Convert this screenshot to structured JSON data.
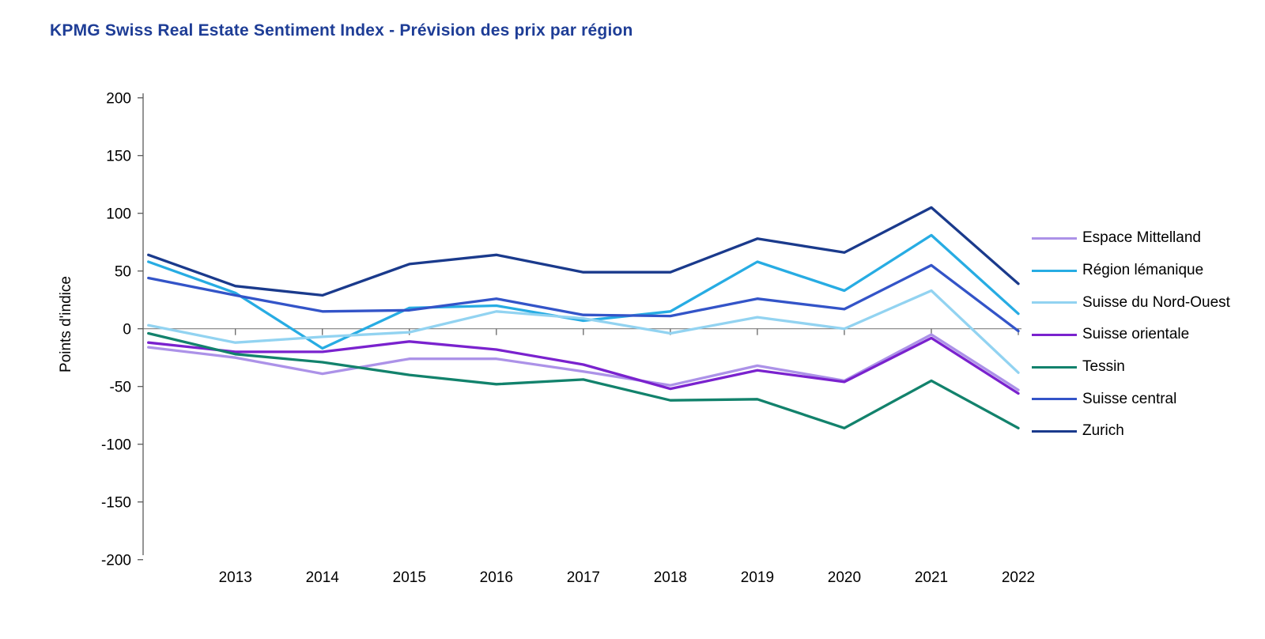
{
  "title": "KPMG Swiss Real Estate Sentiment Index - Prévision des prix par région",
  "title_color": "#1E3D96",
  "chart_data": {
    "type": "line",
    "x": [
      2012,
      2013,
      2014,
      2015,
      2016,
      2017,
      2018,
      2019,
      2020,
      2021,
      2022
    ],
    "x_tick_labels": [
      "2013",
      "2014",
      "2015",
      "2016",
      "2017",
      "2018",
      "2019",
      "2020",
      "2021",
      "2022"
    ],
    "ylabel": "Points d'indice",
    "ylim": [
      -200,
      200
    ],
    "y_ticks": [
      200,
      150,
      100,
      50,
      0,
      -50,
      -100,
      -150,
      -200
    ],
    "grid": "zero-baseline-only",
    "legend_position": "right",
    "axis_color": "#5a5a5a",
    "zero_line_color": "#808080",
    "series": [
      {
        "name": "Espace Mittelland",
        "color": "#AC92E8",
        "values": [
          -16,
          -25,
          -39,
          -26,
          -26,
          -37,
          -49,
          -32,
          -45,
          -5,
          -53
        ]
      },
      {
        "name": "Région lémanique",
        "color": "#27ACE3",
        "values": [
          58,
          31,
          -17,
          18,
          20,
          7,
          15,
          58,
          33,
          81,
          13
        ]
      },
      {
        "name": "Suisse du Nord-Ouest",
        "color": "#92D3F1",
        "values": [
          3,
          -12,
          -7,
          -3,
          15,
          9,
          -4,
          10,
          0,
          33,
          -38
        ]
      },
      {
        "name": "Suisse orientale",
        "color": "#7A22CE",
        "values": [
          -12,
          -20,
          -20,
          -11,
          -18,
          -31,
          -52,
          -36,
          -46,
          -8,
          -56
        ]
      },
      {
        "name": "Tessin",
        "color": "#12826C",
        "values": [
          -4,
          -22,
          -29,
          -40,
          -48,
          -44,
          -62,
          -61,
          -86,
          -45,
          -86
        ]
      },
      {
        "name": "Suisse central",
        "color": "#3354C8",
        "values": [
          44,
          29,
          15,
          16,
          26,
          12,
          11,
          26,
          17,
          55,
          -2
        ]
      },
      {
        "name": "Zurich",
        "color": "#1A3A8C",
        "values": [
          64,
          37,
          29,
          56,
          64,
          49,
          49,
          78,
          66,
          105,
          39
        ]
      }
    ]
  }
}
